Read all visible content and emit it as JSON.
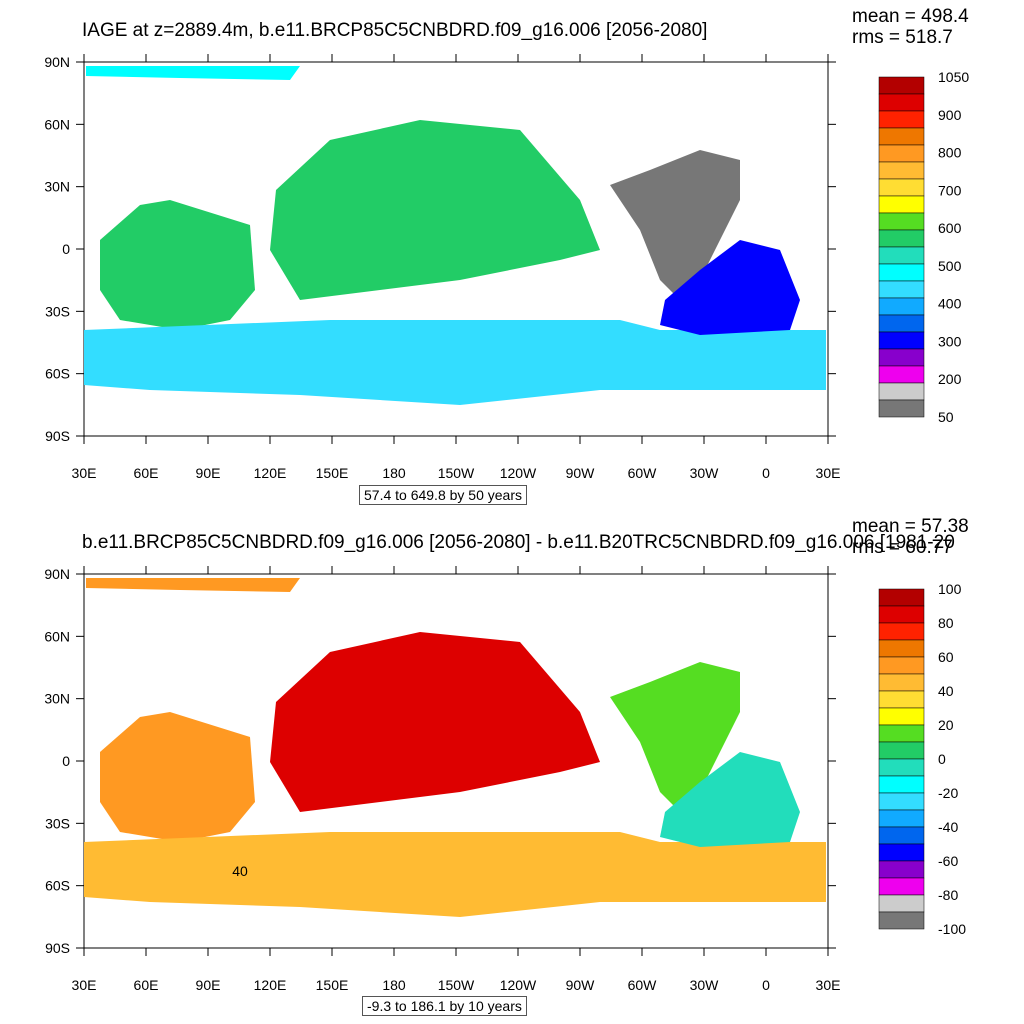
{
  "chart_data": [
    {
      "type": "heatmap",
      "title": "IAGE at z=2889.4m, b.e11.BRCP85C5CNBDRD.f09_g16.006 [2056-2080]",
      "stats": {
        "mean": "mean = 498.4",
        "rms": "rms = 518.7"
      },
      "range_note": "57.4 to 649.8 by 50 years",
      "x_ticks": [
        "30E",
        "60E",
        "90E",
        "120E",
        "150E",
        "180",
        "150W",
        "120W",
        "90W",
        "60W",
        "30W",
        "0",
        "30E"
      ],
      "y_ticks": [
        "90N",
        "60N",
        "30N",
        "0",
        "30S",
        "60S",
        "90S"
      ],
      "colorbar": {
        "labels": [
          "1050",
          "900",
          "800",
          "700",
          "600",
          "500",
          "400",
          "300",
          "200",
          "50"
        ],
        "colors": [
          "#b30000",
          "#dd0000",
          "#ff2200",
          "#ee7700",
          "#ff9922",
          "#ffbb33",
          "#ffdd33",
          "#ffff00",
          "#55dd22",
          "#22cc66",
          "#22ddbb",
          "#00ffff",
          "#33ddff",
          "#11aaff",
          "#0066ee",
          "#0000ff",
          "#8800cc",
          "#ee00ee",
          "#cccccc",
          "#777777"
        ]
      },
      "regions": [
        {
          "name": "arctic",
          "value": 500
        },
        {
          "name": "north-pacific",
          "value": 600
        },
        {
          "name": "indian-ocean",
          "value": 600
        },
        {
          "name": "southern-ocean",
          "value": 450
        },
        {
          "name": "north-atlantic",
          "value": 100
        },
        {
          "name": "south-atlantic",
          "value": 300
        }
      ]
    },
    {
      "type": "heatmap",
      "title": "b.e11.BRCP85C5CNBDRD.f09_g16.006 [2056-2080] - b.e11.B20TRC5CNBDRD.f09_g16.006 [1981-20",
      "stats": {
        "mean": "mean = 57.38",
        "rms": "rms = 60.77"
      },
      "range_note": "-9.3 to 186.1 by 10 years",
      "contour_label": "40",
      "x_ticks": [
        "30E",
        "60E",
        "90E",
        "120E",
        "150E",
        "180",
        "150W",
        "120W",
        "90W",
        "60W",
        "30W",
        "0",
        "30E"
      ],
      "y_ticks": [
        "90N",
        "60N",
        "30N",
        "0",
        "30S",
        "60S",
        "90S"
      ],
      "colorbar": {
        "labels": [
          "100",
          "80",
          "60",
          "40",
          "20",
          "0",
          "-20",
          "-40",
          "-60",
          "-80",
          "-100"
        ],
        "colors": [
          "#b30000",
          "#dd0000",
          "#ff2200",
          "#ee7700",
          "#ff9922",
          "#ffbb33",
          "#ffdd33",
          "#ffff00",
          "#55dd22",
          "#22cc66",
          "#22ddbb",
          "#00ffff",
          "#33ddff",
          "#11aaff",
          "#0066ee",
          "#0000ff",
          "#8800cc",
          "#ee00ee",
          "#cccccc",
          "#777777"
        ]
      },
      "regions": [
        {
          "name": "arctic",
          "value": 55
        },
        {
          "name": "north-pacific",
          "value": 85
        },
        {
          "name": "indian-ocean",
          "value": 60
        },
        {
          "name": "southern-ocean",
          "value": 50
        },
        {
          "name": "north-atlantic",
          "value": 15
        },
        {
          "name": "south-atlantic",
          "value": 0
        }
      ]
    }
  ]
}
